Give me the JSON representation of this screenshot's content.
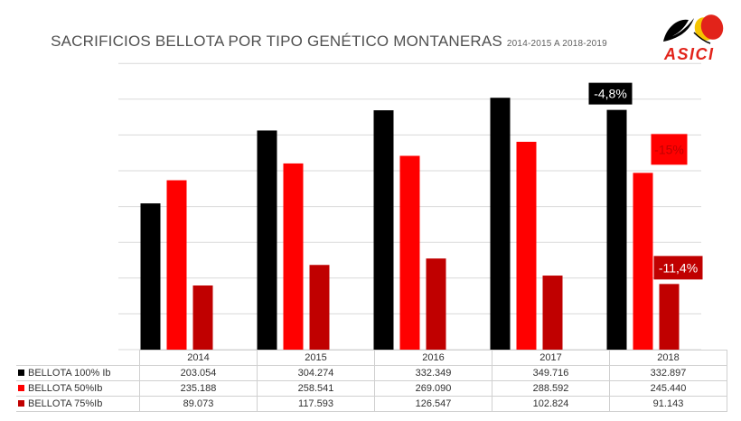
{
  "title": {
    "main": "SACRIFICIOS BELLOTA POR TIPO GENÉTICO MONTANERAS",
    "sub": "2014-2015 A 2018-2019"
  },
  "logo": {
    "text": "ASICI"
  },
  "colors": {
    "series1": "#000000",
    "series2": "#ff0000",
    "series3": "#c00000",
    "grid": "#d9d9d9"
  },
  "chart_data": {
    "type": "bar",
    "categories": [
      "2014",
      "2015",
      "2016",
      "2017",
      "2018"
    ],
    "series": [
      {
        "name": "BELLOTA 100% Ib",
        "values": [
          203054,
          304274,
          332349,
          349716,
          332897
        ],
        "labels": [
          "203.054",
          "304.274",
          "332.349",
          "349.716",
          "332.897"
        ]
      },
      {
        "name": "BELLOTA 50%Ib",
        "values": [
          235188,
          258541,
          269090,
          288592,
          245440
        ],
        "labels": [
          "235.188",
          "258.541",
          "269.090",
          "288.592",
          "245.440"
        ]
      },
      {
        "name": "BELLOTA 75%Ib",
        "values": [
          89073,
          117593,
          126547,
          102824,
          91143
        ],
        "labels": [
          "89.073",
          "117.593",
          "126.547",
          "102.824",
          "91.143"
        ]
      }
    ],
    "annotations": [
      {
        "text": "-4,8%",
        "series": 0,
        "category": "2018"
      },
      {
        "text": "-15%",
        "series": 1,
        "category": "2018"
      },
      {
        "text": "-11,4%",
        "series": 2,
        "category": "2018"
      }
    ],
    "ylim": [
      0,
      350000
    ],
    "grid": true,
    "legend": "table-below"
  }
}
